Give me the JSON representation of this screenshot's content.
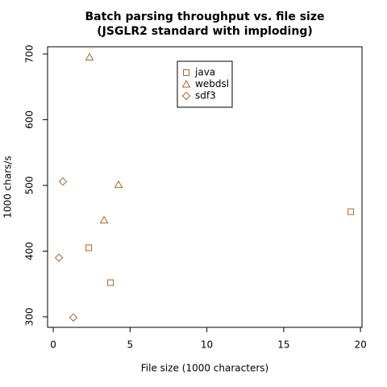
{
  "chart_data": {
    "type": "scatter",
    "title": [
      "Batch parsing throughput vs. file size",
      "(JSGLR2 standard with imploding)"
    ],
    "x_label": "File size (1000 characters)",
    "y_label": "1000 chars/s",
    "xlim": [
      -0.37,
      20.1
    ],
    "ylim": [
      284,
      711
    ],
    "xticks": [
      0,
      5,
      10,
      15,
      20
    ],
    "yticks": [
      300,
      400,
      500,
      600,
      700
    ],
    "legend": "top",
    "series": [
      {
        "name": "java",
        "color": "#a8662a",
        "marker": "square",
        "x": [
          2.31,
          3.73,
          19.37
        ],
        "values": [
          405,
          352,
          460
        ]
      },
      {
        "name": "webdsl",
        "color": "#a8662a",
        "marker": "triangle",
        "x": [
          2.36,
          4.25,
          3.31
        ],
        "values": [
          695,
          501,
          447
        ]
      },
      {
        "name": "sdf3",
        "color": "#a8662a",
        "marker": "diamond",
        "x": [
          0.63,
          0.37,
          1.31
        ],
        "values": [
          506,
          390,
          299
        ]
      }
    ]
  }
}
